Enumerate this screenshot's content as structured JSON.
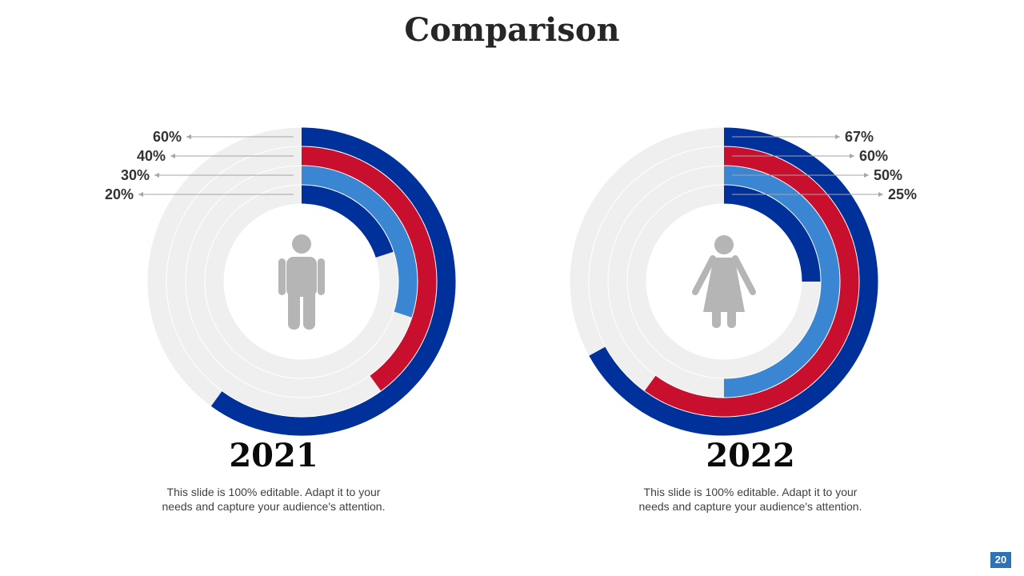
{
  "slide": {
    "title": "Comparison",
    "page_number": "20"
  },
  "colors": {
    "navy": "#00309a",
    "red": "#c8102e",
    "blue": "#3a86d2",
    "track": "#efefef",
    "figure": "#b5b5b5"
  },
  "chart_data": [
    {
      "type": "radial-bar",
      "title": "2021",
      "icon": "male-person-icon",
      "label_side": "left",
      "rings": [
        {
          "label": "60%",
          "value": 60,
          "color": "#00309a"
        },
        {
          "label": "40%",
          "value": 40,
          "color": "#c8102e"
        },
        {
          "label": "30%",
          "value": 30,
          "color": "#3a86d2"
        },
        {
          "label": "20%",
          "value": 20,
          "color": "#00309a"
        }
      ],
      "caption_line1": "This slide is 100% editable. Adapt it to your",
      "caption_line2": "needs and capture your audience's attention."
    },
    {
      "type": "radial-bar",
      "title": "2022",
      "icon": "female-person-icon",
      "label_side": "right",
      "rings": [
        {
          "label": "67%",
          "value": 67,
          "color": "#00309a"
        },
        {
          "label": "60%",
          "value": 60,
          "color": "#c8102e"
        },
        {
          "label": "50%",
          "value": 50,
          "color": "#3a86d2"
        },
        {
          "label": "25%",
          "value": 25,
          "color": "#00309a"
        }
      ],
      "caption_line1": "This slide is 100% editable. Adapt it to your",
      "caption_line2": "needs and capture your audience's attention."
    }
  ]
}
